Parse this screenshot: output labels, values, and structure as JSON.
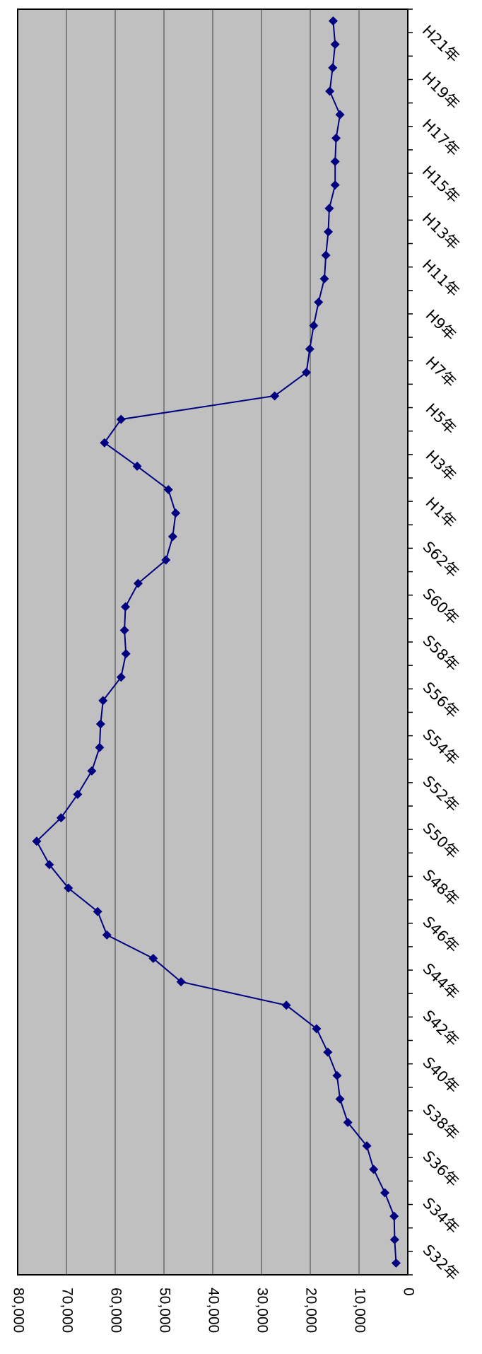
{
  "chart_data": {
    "type": "line",
    "orientation": "rotated-90-clockwise",
    "title": "",
    "xlabel": "",
    "ylabel": "",
    "ylim": [
      0,
      80000
    ],
    "y_ticks": [
      0,
      10000,
      20000,
      30000,
      40000,
      50000,
      60000,
      70000,
      80000
    ],
    "y_tick_labels": [
      "0",
      "10,000",
      "20,000",
      "30,000",
      "40,000",
      "50,000",
      "60,000",
      "70,000",
      "80,000"
    ],
    "categories": [
      "S32年",
      "S33年",
      "S34年",
      "S35年",
      "S36年",
      "S37年",
      "S38年",
      "S39年",
      "S40年",
      "S41年",
      "S42年",
      "S43年",
      "S44年",
      "S45年",
      "S46年",
      "S47年",
      "S48年",
      "S49年",
      "S50年",
      "S51年",
      "S52年",
      "S53年",
      "S54年",
      "S55年",
      "S56年",
      "S57年",
      "S58年",
      "S59年",
      "S60年",
      "S61年",
      "S62年",
      "S63年",
      "H1年",
      "H2年",
      "H3年",
      "H4年",
      "H5年",
      "H6年",
      "H7年",
      "H8年",
      "H9年",
      "H10年",
      "H11年",
      "H12年",
      "H13年",
      "H14年",
      "H15年",
      "H16年",
      "H17年",
      "H18年",
      "H19年",
      "H20年",
      "H21年",
      "H22年"
    ],
    "x_tick_labels": [
      "S32年",
      "S34年",
      "S36年",
      "S38年",
      "S40年",
      "S42年",
      "S44年",
      "S46年",
      "S48年",
      "S50年",
      "S52年",
      "S54年",
      "S56年",
      "S58年",
      "S60年",
      "S62年",
      "H1年",
      "H3年",
      "H5年",
      "H7年",
      "H9年",
      "H11年",
      "H13年",
      "H15年",
      "H17年",
      "H19年",
      "H21年"
    ],
    "grid": true,
    "plot_background": "#c0c0c0",
    "grid_color": "#404040",
    "series": [
      {
        "color": "#000080",
        "marker": "diamond",
        "values": [
          2400,
          2700,
          2800,
          4700,
          7000,
          8400,
          12300,
          13900,
          14500,
          16400,
          18700,
          24900,
          46500,
          52200,
          61700,
          63600,
          69600,
          73500,
          76100,
          71100,
          67700,
          64800,
          63200,
          63000,
          62500,
          58800,
          57800,
          58100,
          57900,
          55300,
          49600,
          48200,
          47600,
          49100,
          55500,
          62200,
          58800,
          27300,
          20800,
          20100,
          19300,
          18300,
          17100,
          16800,
          16300,
          16100,
          14900,
          14900,
          14700,
          13900,
          16000,
          15400,
          14900,
          15300
        ]
      }
    ]
  }
}
